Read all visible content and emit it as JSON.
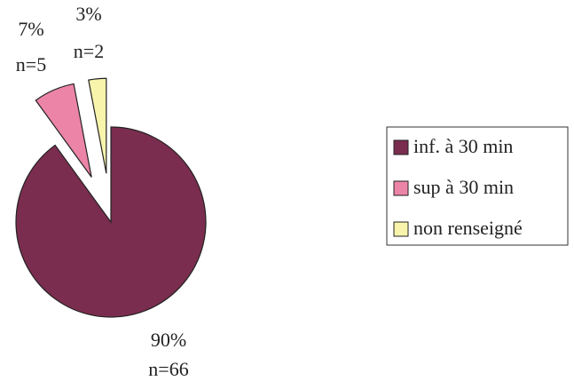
{
  "chart_data": {
    "type": "pie",
    "categories": [
      "inf. à 30 min",
      "sup à 30 min",
      "non renseigné"
    ],
    "values": [
      90,
      7,
      3
    ],
    "value_labels": [
      "90%",
      "7%",
      "3%"
    ],
    "counts": [
      66,
      5,
      2
    ],
    "count_labels": [
      "n=66",
      "n=5",
      "n=2"
    ],
    "colors": [
      "#7b2d4f",
      "#ec84a8",
      "#f8f4ac"
    ],
    "explode": [
      false,
      true,
      true
    ],
    "legend": "right"
  }
}
